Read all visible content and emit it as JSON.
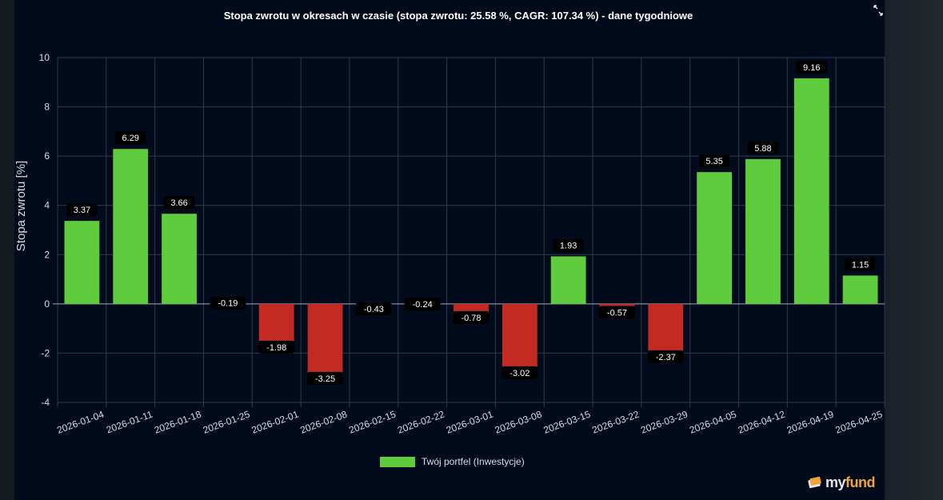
{
  "chart_data": {
    "type": "bar",
    "title": "Stopa zwrotu w okresach w czasie (stopa zwrotu: 25.58 %, CAGR: 107.34 %) - dane tygodniowe",
    "ylabel": "Stopa zwrotu [%]",
    "xlabel": "",
    "ylim": [
      -4,
      10
    ],
    "yticks": [
      -4,
      -2,
      0,
      2,
      4,
      6,
      8,
      10
    ],
    "grid": true,
    "legend_placement": "bottom",
    "categories": [
      "2026-01-04",
      "2026-01-11",
      "2026-01-18",
      "2026-01-25",
      "2026-02-01",
      "2026-02-08",
      "2026-02-15",
      "2026-02-22",
      "2026-03-01",
      "2026-03-08",
      "2026-03-15",
      "2026-03-22",
      "2026-03-29",
      "2026-04-05",
      "2026-04-12",
      "2026-04-19",
      "2026-04-25"
    ],
    "series": [
      {
        "name": "Twój portfel (Inwestycje)",
        "values": [
          3.37,
          6.29,
          3.66,
          -0.19,
          -1.98,
          -3.25,
          -0.43,
          -0.24,
          -0.78,
          -3.02,
          1.93,
          -0.57,
          -2.37,
          5.35,
          5.88,
          9.16,
          1.15
        ],
        "labels": [
          "3.37",
          "6.29",
          "3.66",
          "-0.19",
          "-1.98",
          "-3.25",
          "-0.43",
          "-0.24",
          "-0.78",
          "-3.02",
          "1.93",
          "-0.57",
          "-2.37",
          "5.35",
          "5.88",
          "9.16",
          "1.15"
        ]
      }
    ],
    "colors": {
      "positive": "#5fcc3d",
      "negative": "#c32b22",
      "negative_edge": "#e23a2e",
      "grid": "#2f3a4c",
      "axis_text": "#d8dde6",
      "label_bg": "#000000",
      "label_text": "#ffffff"
    }
  },
  "legend": {
    "label": "Twój portfel (Inwestycje)"
  },
  "icons": {
    "expand": "expand-icon",
    "logo": "myfund-logo-icon"
  },
  "logo": {
    "text_main": "my",
    "text_accent": "fund"
  }
}
